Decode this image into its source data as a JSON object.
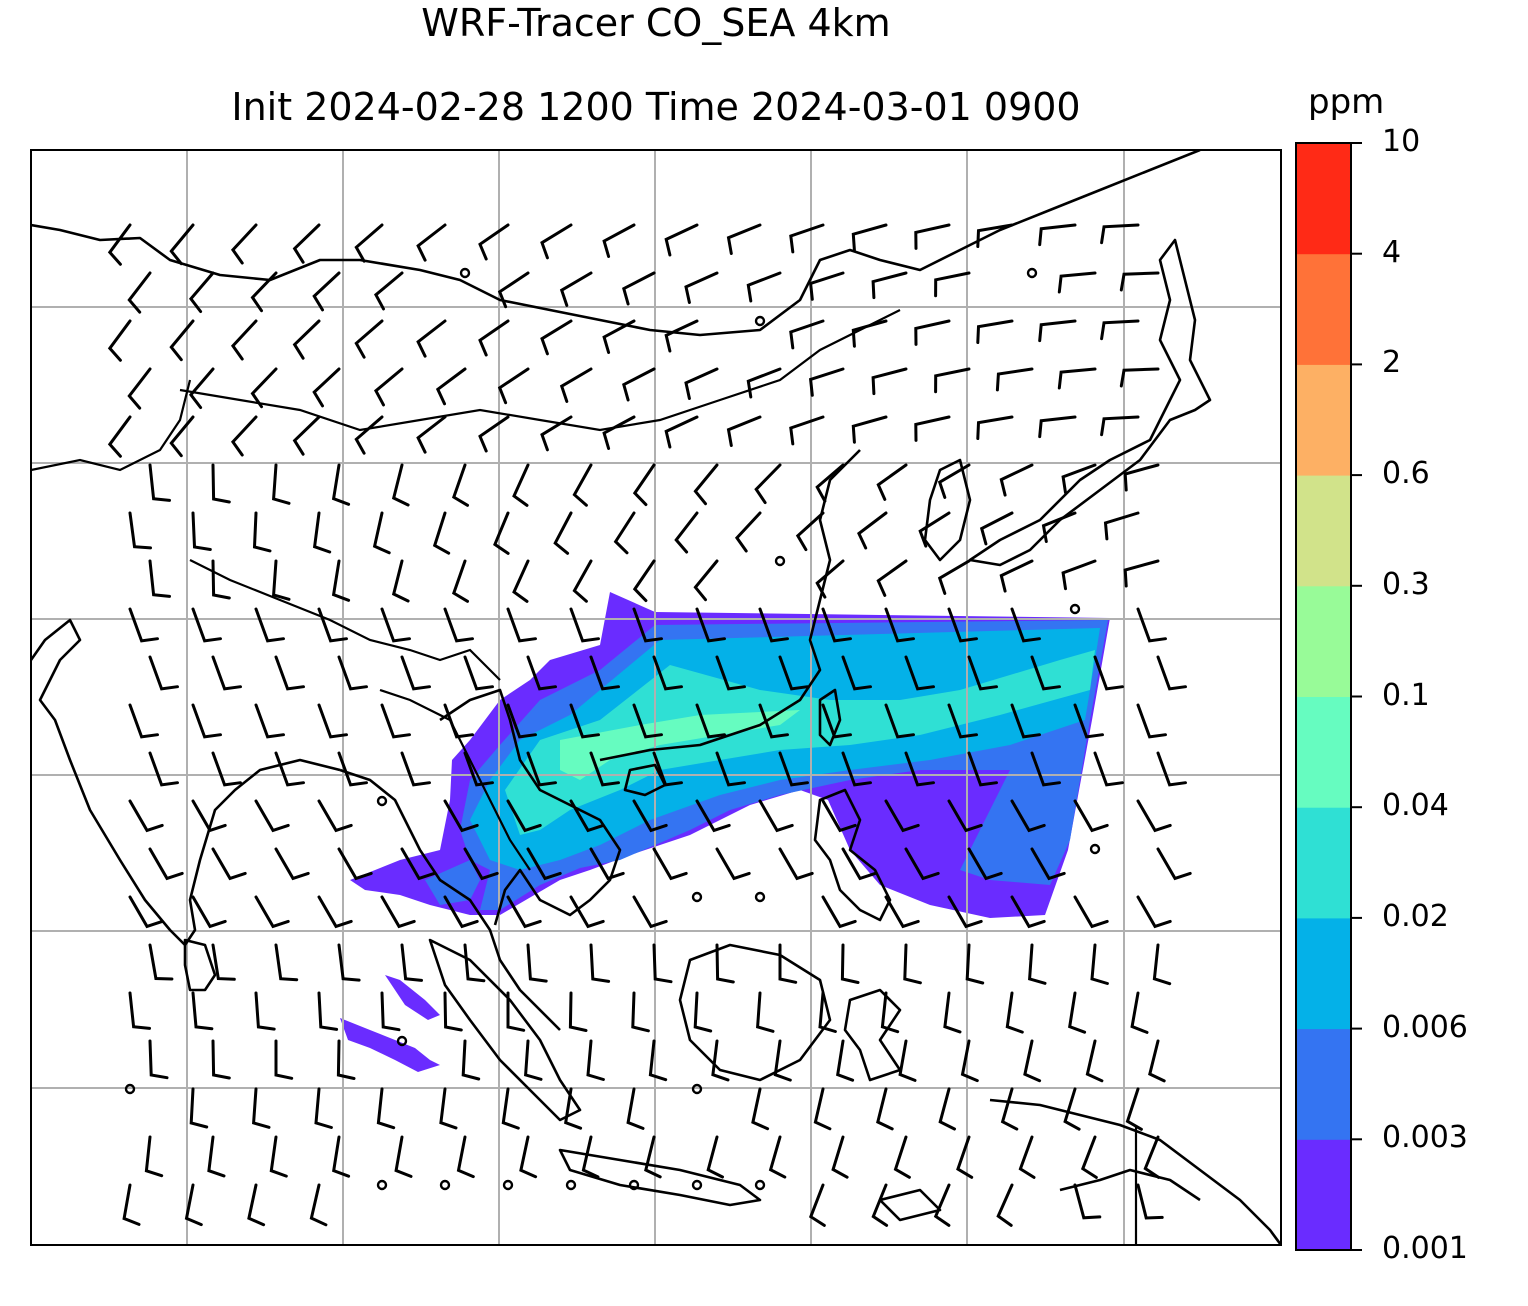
{
  "title": {
    "line1": "WRF-Tracer CO_SEA 4km",
    "line2": "Init 2024-02-28 1200 Time 2024-03-01 0900"
  },
  "colorbar": {
    "unit": "ppm",
    "ticks": [
      "0.001",
      "0.003",
      "0.006",
      "0.02",
      "0.04",
      "0.1",
      "0.3",
      "0.6",
      "2",
      "4",
      "10"
    ],
    "colors": [
      "#6a2cff",
      "#3474f2",
      "#04b1e8",
      "#2fe0d4",
      "#66fcc0",
      "#98fb98",
      "#d1e38a",
      "#fdb064",
      "#ff7238",
      "#ff2a16"
    ]
  },
  "map": {
    "gridlines": true,
    "features": [
      "coastlines",
      "borders",
      "wind-barbs",
      "co-tracer-plume"
    ]
  }
}
